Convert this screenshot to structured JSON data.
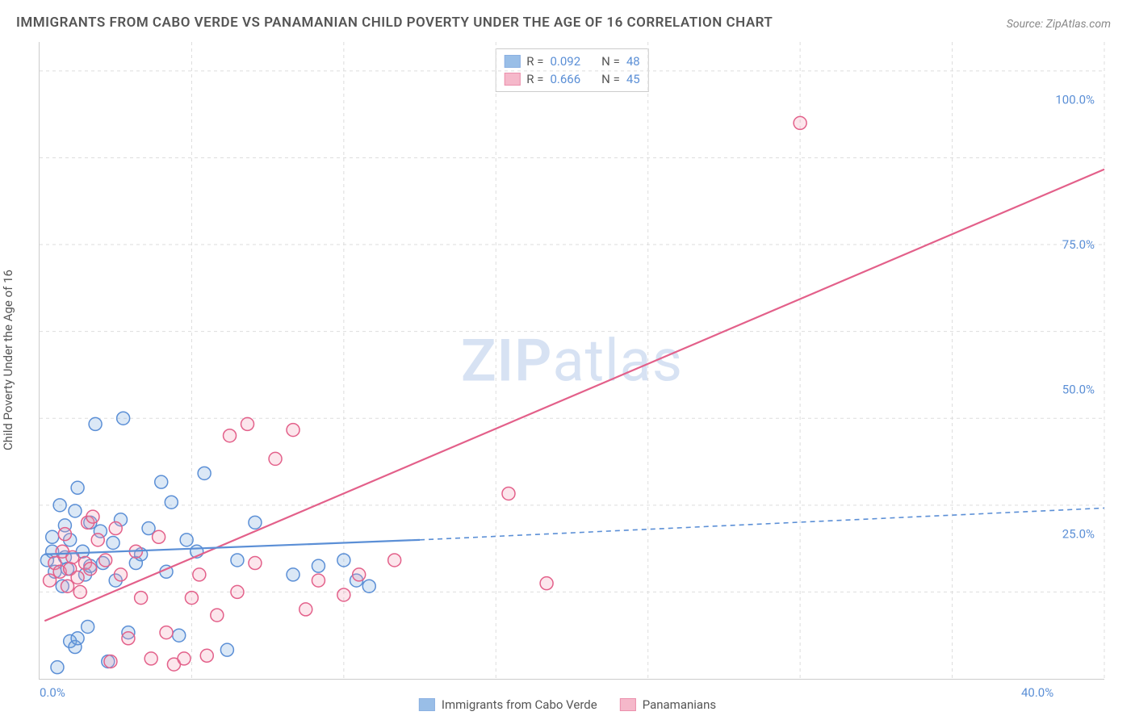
{
  "title": "IMMIGRANTS FROM CABO VERDE VS PANAMANIAN CHILD POVERTY UNDER THE AGE OF 16 CORRELATION CHART",
  "source": "Source: ZipAtlas.com",
  "y_axis_label": "Child Poverty Under the Age of 16",
  "watermark_bold": "ZIP",
  "watermark_rest": "atlas",
  "chart": {
    "type": "scatter",
    "background_color": "#ffffff",
    "grid_color": "#dddddd",
    "axis_color": "#cccccc",
    "tick_color": "#5b8fd6",
    "xlim": [
      0,
      42
    ],
    "ylim": [
      0,
      110
    ],
    "xticks": [
      0,
      40
    ],
    "xtick_labels": [
      "0.0%",
      "40.0%"
    ],
    "yticks": [
      25,
      50,
      75,
      100
    ],
    "ytick_labels": [
      "25.0%",
      "50.0%",
      "75.0%",
      "100.0%"
    ],
    "x_gridlines": [
      6,
      12,
      18,
      24,
      30,
      36,
      42
    ],
    "y_gridlines": [
      15,
      30,
      45,
      60,
      75,
      90,
      105
    ],
    "marker_radius": 8,
    "marker_fill_opacity": 0.25,
    "marker_stroke_width": 1.5,
    "line_width_solid": 2.2,
    "line_width_dash": 1.6,
    "dash_pattern": "6,5"
  },
  "series": {
    "a": {
      "label": "Immigrants from Cabo Verde",
      "color": "#6fa3dd",
      "stroke": "#5b8fd6",
      "r_label": "R =",
      "r_value": "0.092",
      "n_label": "N =",
      "n_value": "48",
      "trend_solid": {
        "x1": 0.2,
        "y1": 21.5,
        "x2": 15,
        "y2": 24.0
      },
      "trend_dash": {
        "x1": 15,
        "y1": 24.0,
        "x2": 42,
        "y2": 29.5
      },
      "points": [
        [
          0.3,
          20.5
        ],
        [
          0.5,
          22.0
        ],
        [
          0.5,
          24.5
        ],
        [
          0.6,
          18.5
        ],
        [
          0.7,
          2.0
        ],
        [
          0.8,
          30.0
        ],
        [
          0.9,
          16.0
        ],
        [
          1.0,
          21.0
        ],
        [
          1.0,
          26.5
        ],
        [
          1.1,
          19.0
        ],
        [
          1.2,
          24.0
        ],
        [
          1.2,
          6.5
        ],
        [
          1.4,
          5.5
        ],
        [
          1.4,
          29.0
        ],
        [
          1.5,
          33.0
        ],
        [
          1.5,
          7.0
        ],
        [
          1.7,
          22.0
        ],
        [
          1.8,
          18.0
        ],
        [
          1.9,
          9.0
        ],
        [
          2.0,
          27.0
        ],
        [
          2.0,
          19.5
        ],
        [
          2.2,
          44.0
        ],
        [
          2.4,
          25.5
        ],
        [
          2.5,
          20.0
        ],
        [
          2.7,
          3.0
        ],
        [
          2.9,
          23.5
        ],
        [
          3.0,
          17.0
        ],
        [
          3.2,
          27.5
        ],
        [
          3.3,
          45.0
        ],
        [
          3.5,
          8.0
        ],
        [
          3.8,
          20.0
        ],
        [
          4.0,
          21.5
        ],
        [
          4.3,
          26.0
        ],
        [
          4.8,
          34.0
        ],
        [
          5.0,
          18.5
        ],
        [
          5.2,
          30.5
        ],
        [
          5.5,
          7.5
        ],
        [
          5.8,
          24.0
        ],
        [
          6.2,
          22.0
        ],
        [
          6.5,
          35.5
        ],
        [
          7.4,
          5.0
        ],
        [
          7.8,
          20.5
        ],
        [
          8.5,
          27.0
        ],
        [
          10.0,
          18.0
        ],
        [
          11.0,
          19.5
        ],
        [
          12.0,
          20.5
        ],
        [
          12.5,
          17.0
        ],
        [
          13.0,
          16.0
        ]
      ]
    },
    "b": {
      "label": "Panamanians",
      "color": "#f29bb4",
      "stroke": "#e3608a",
      "r_label": "R =",
      "r_value": "0.666",
      "n_label": "N =",
      "n_value": "45",
      "trend_solid": {
        "x1": 0.2,
        "y1": 10.0,
        "x2": 42,
        "y2": 88.0
      },
      "trend_dash": null,
      "points": [
        [
          0.4,
          17.0
        ],
        [
          0.6,
          20.0
        ],
        [
          0.8,
          18.5
        ],
        [
          0.9,
          22.0
        ],
        [
          1.0,
          25.0
        ],
        [
          1.1,
          16.0
        ],
        [
          1.2,
          19.0
        ],
        [
          1.3,
          21.0
        ],
        [
          1.5,
          17.5
        ],
        [
          1.6,
          15.0
        ],
        [
          1.8,
          20.0
        ],
        [
          1.9,
          27.0
        ],
        [
          2.0,
          19.0
        ],
        [
          2.1,
          28.0
        ],
        [
          2.3,
          24.0
        ],
        [
          2.6,
          20.5
        ],
        [
          2.8,
          3.0
        ],
        [
          3.0,
          26.0
        ],
        [
          3.2,
          18.0
        ],
        [
          3.5,
          7.0
        ],
        [
          3.8,
          22.0
        ],
        [
          4.0,
          14.0
        ],
        [
          4.4,
          3.5
        ],
        [
          4.7,
          24.5
        ],
        [
          5.0,
          8.0
        ],
        [
          5.3,
          2.5
        ],
        [
          5.7,
          3.5
        ],
        [
          6.0,
          14.0
        ],
        [
          6.3,
          18.0
        ],
        [
          6.6,
          4.0
        ],
        [
          7.0,
          11.0
        ],
        [
          7.5,
          42.0
        ],
        [
          7.8,
          15.0
        ],
        [
          8.2,
          44.0
        ],
        [
          8.5,
          20.0
        ],
        [
          9.3,
          38.0
        ],
        [
          10.0,
          43.0
        ],
        [
          10.5,
          12.0
        ],
        [
          11.0,
          17.0
        ],
        [
          12.0,
          14.5
        ],
        [
          12.6,
          18.0
        ],
        [
          14.0,
          20.5
        ],
        [
          18.5,
          32.0
        ],
        [
          20.0,
          16.5
        ],
        [
          30.0,
          96.0
        ]
      ]
    }
  },
  "legend_bottom": {
    "a_label": "Immigrants from Cabo Verde",
    "b_label": "Panamanians"
  }
}
